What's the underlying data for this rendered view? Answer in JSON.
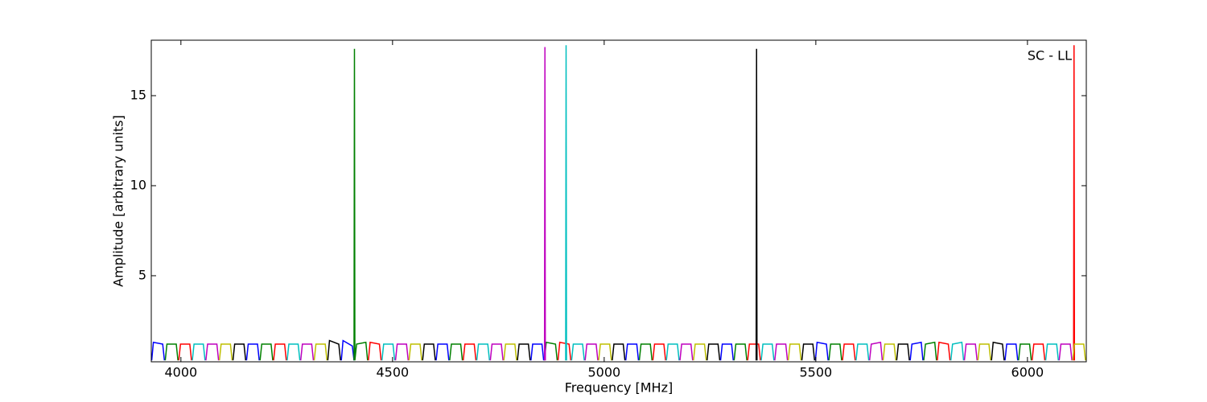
{
  "chart_data": {
    "type": "line",
    "xlabel": "Frequency [MHz]",
    "ylabel": "Amplitude [arbitrary units]",
    "annotation": "SC - LL",
    "xlim": [
      3930,
      6139
    ],
    "ylim": [
      0.22,
      18.08
    ],
    "xticks": [
      4000,
      4500,
      5000,
      5500,
      6000
    ],
    "yticks": [
      5,
      10,
      15
    ],
    "series": [
      {
        "color": "#0000ff",
        "x": [
          3931,
          3935,
          3957,
          3961,
          3962,
          4155,
          4159,
          4181,
          4185,
          4186,
          4379,
          4383,
          4405,
          4409,
          4410,
          4603,
          4607,
          4629,
          4633,
          4634,
          4827,
          4831,
          4853,
          4857,
          4858,
          5051,
          5055,
          5077,
          5081,
          5082,
          5275,
          5279,
          5301,
          5305,
          5306,
          5499,
          5503,
          5525,
          5529,
          5530,
          5723,
          5727,
          5749,
          5753,
          5754,
          5947,
          5951,
          5973,
          5977,
          5978
        ],
        "values": [
          0.3,
          1.3,
          1.2,
          0.3,
          null,
          0.3,
          1.2,
          1.2,
          0.3,
          null,
          0.3,
          1.4,
          1.1,
          0.3,
          null,
          0.3,
          1.2,
          1.2,
          0.3,
          null,
          0.3,
          1.2,
          1.2,
          0.3,
          null,
          0.3,
          1.2,
          1.2,
          0.3,
          null,
          0.3,
          1.2,
          1.2,
          0.3,
          null,
          0.3,
          1.3,
          1.2,
          0.3,
          null,
          0.3,
          1.2,
          1.3,
          0.3,
          null,
          0.3,
          1.2,
          1.2,
          0.3,
          null
        ]
      },
      {
        "color": "#008000",
        "x": [
          3963,
          3967,
          3989,
          3993,
          3994,
          4187,
          4191,
          4213,
          4217,
          4218,
          4411,
          4415,
          4437,
          4441,
          4442,
          4635,
          4639,
          4661,
          4665,
          4666,
          4859,
          4863,
          4885,
          4889,
          4890,
          5083,
          5087,
          5109,
          5113,
          5114,
          5307,
          5311,
          5333,
          5337,
          5338,
          5531,
          5535,
          5557,
          5561,
          5562,
          5755,
          5759,
          5781,
          5785,
          5786,
          5979,
          5983,
          6005,
          6009,
          6010,
          4409,
          4410,
          4411,
          4412
        ],
        "values": [
          0.3,
          1.2,
          1.2,
          0.3,
          null,
          0.3,
          1.2,
          1.2,
          0.3,
          null,
          0.3,
          1.2,
          1.3,
          0.3,
          null,
          0.3,
          1.2,
          1.2,
          0.3,
          null,
          0.3,
          1.3,
          1.2,
          0.3,
          null,
          0.3,
          1.2,
          1.2,
          0.3,
          null,
          0.3,
          1.2,
          1.2,
          0.3,
          null,
          0.3,
          1.2,
          1.2,
          0.3,
          null,
          0.3,
          1.2,
          1.3,
          0.3,
          null,
          0.3,
          1.2,
          1.2,
          0.3,
          null,
          0.3,
          17.6,
          0.3,
          null
        ]
      },
      {
        "color": "#ff0000",
        "x": [
          3995,
          3999,
          4021,
          4025,
          4026,
          4219,
          4223,
          4245,
          4249,
          4250,
          4443,
          4447,
          4469,
          4473,
          4474,
          4667,
          4671,
          4693,
          4697,
          4698,
          4891,
          4895,
          4917,
          4921,
          4922,
          5115,
          5119,
          5141,
          5145,
          5146,
          5339,
          5343,
          5365,
          5369,
          5370,
          5563,
          5567,
          5589,
          5593,
          5594,
          5787,
          5791,
          5813,
          5817,
          5818,
          6011,
          6015,
          6037,
          6041,
          6042,
          6109,
          6110,
          6111,
          6112
        ],
        "values": [
          0.3,
          1.2,
          1.2,
          0.3,
          null,
          0.3,
          1.2,
          1.2,
          0.3,
          null,
          0.3,
          1.3,
          1.2,
          0.3,
          null,
          0.3,
          1.2,
          1.2,
          0.3,
          null,
          0.3,
          1.3,
          1.2,
          0.3,
          null,
          0.3,
          1.2,
          1.2,
          0.3,
          null,
          0.3,
          1.2,
          1.2,
          0.3,
          null,
          0.3,
          1.2,
          1.2,
          0.3,
          null,
          0.3,
          1.3,
          1.2,
          0.3,
          null,
          0.3,
          1.2,
          1.2,
          0.3,
          null,
          0.3,
          17.8,
          0.3,
          null
        ]
      },
      {
        "color": "#00bfbf",
        "x": [
          4027,
          4031,
          4053,
          4057,
          4058,
          4251,
          4255,
          4277,
          4281,
          4282,
          4475,
          4479,
          4501,
          4505,
          4506,
          4699,
          4703,
          4725,
          4729,
          4730,
          4923,
          4927,
          4949,
          4953,
          4954,
          5147,
          5151,
          5173,
          5177,
          5178,
          5371,
          5375,
          5397,
          5401,
          5402,
          5595,
          5599,
          5621,
          5625,
          5626,
          5819,
          5823,
          5845,
          5849,
          5850,
          6043,
          6047,
          6069,
          6073,
          6074,
          4909,
          4910,
          4911,
          4912
        ],
        "values": [
          0.3,
          1.2,
          1.2,
          0.3,
          null,
          0.3,
          1.2,
          1.2,
          0.3,
          null,
          0.3,
          1.2,
          1.2,
          0.3,
          null,
          0.3,
          1.2,
          1.2,
          0.3,
          null,
          0.3,
          1.2,
          1.2,
          0.3,
          null,
          0.3,
          1.2,
          1.2,
          0.3,
          null,
          0.3,
          1.2,
          1.2,
          0.3,
          null,
          0.3,
          1.2,
          1.2,
          0.3,
          null,
          0.3,
          1.2,
          1.3,
          0.3,
          null,
          0.3,
          1.2,
          1.2,
          0.3,
          null,
          0.3,
          17.8,
          0.3,
          null
        ]
      },
      {
        "color": "#bf00bf",
        "x": [
          4059,
          4063,
          4085,
          4089,
          4090,
          4283,
          4287,
          4309,
          4313,
          4314,
          4507,
          4511,
          4533,
          4537,
          4538,
          4731,
          4735,
          4757,
          4761,
          4762,
          4955,
          4959,
          4981,
          4985,
          4986,
          5179,
          5183,
          5205,
          5209,
          5210,
          5403,
          5407,
          5429,
          5433,
          5434,
          5627,
          5631,
          5653,
          5657,
          5658,
          5851,
          5855,
          5877,
          5881,
          5882,
          6075,
          6079,
          6101,
          6105,
          6106,
          4859,
          4860,
          4861,
          4862
        ],
        "values": [
          0.3,
          1.2,
          1.2,
          0.3,
          null,
          0.3,
          1.2,
          1.2,
          0.3,
          null,
          0.3,
          1.2,
          1.2,
          0.3,
          null,
          0.3,
          1.2,
          1.2,
          0.3,
          null,
          0.3,
          1.2,
          1.2,
          0.3,
          null,
          0.3,
          1.2,
          1.2,
          0.3,
          null,
          0.3,
          1.2,
          1.2,
          0.3,
          null,
          0.3,
          1.2,
          1.3,
          0.3,
          null,
          0.3,
          1.2,
          1.2,
          0.3,
          null,
          0.3,
          1.2,
          1.2,
          0.3,
          null,
          0.3,
          17.7,
          0.3,
          null
        ]
      },
      {
        "color": "#bfbf00",
        "x": [
          4091,
          4095,
          4117,
          4121,
          4122,
          4315,
          4319,
          4341,
          4345,
          4346,
          4539,
          4543,
          4565,
          4569,
          4570,
          4763,
          4767,
          4789,
          4793,
          4794,
          4987,
          4991,
          5013,
          5017,
          5018,
          5211,
          5215,
          5237,
          5241,
          5242,
          5435,
          5439,
          5461,
          5465,
          5466,
          5659,
          5663,
          5685,
          5689,
          5690,
          5883,
          5887,
          5909,
          5913,
          5914,
          6107,
          6111,
          6133,
          6137,
          6138
        ],
        "values": [
          0.3,
          1.2,
          1.2,
          0.3,
          null,
          0.3,
          1.2,
          1.2,
          0.3,
          null,
          0.3,
          1.2,
          1.2,
          0.3,
          null,
          0.3,
          1.2,
          1.2,
          0.3,
          null,
          0.3,
          1.2,
          1.2,
          0.3,
          null,
          0.3,
          1.2,
          1.2,
          0.3,
          null,
          0.3,
          1.2,
          1.2,
          0.3,
          null,
          0.3,
          1.2,
          1.2,
          0.3,
          null,
          0.3,
          1.2,
          1.2,
          0.3,
          null,
          0.3,
          1.2,
          1.2,
          0.3,
          null
        ]
      },
      {
        "color": "#000000",
        "x": [
          4123,
          4127,
          4149,
          4153,
          4154,
          4347,
          4351,
          4373,
          4377,
          4378,
          4571,
          4575,
          4597,
          4601,
          4602,
          4795,
          4799,
          4821,
          4825,
          4826,
          5019,
          5023,
          5045,
          5049,
          5050,
          5243,
          5247,
          5269,
          5273,
          5274,
          5467,
          5471,
          5493,
          5497,
          5498,
          5691,
          5695,
          5717,
          5721,
          5722,
          5915,
          5919,
          5941,
          5945,
          5946,
          5359,
          5360,
          5361,
          5362
        ],
        "values": [
          0.3,
          1.2,
          1.2,
          0.3,
          null,
          0.3,
          1.4,
          1.2,
          0.3,
          null,
          0.3,
          1.2,
          1.2,
          0.3,
          null,
          0.3,
          1.2,
          1.2,
          0.3,
          null,
          0.3,
          1.2,
          1.2,
          0.3,
          null,
          0.3,
          1.2,
          1.2,
          0.3,
          null,
          0.3,
          1.2,
          1.2,
          0.3,
          null,
          0.3,
          1.2,
          1.2,
          0.3,
          null,
          0.3,
          1.3,
          1.2,
          0.3,
          null,
          0.3,
          17.6,
          0.3,
          null
        ]
      }
    ]
  }
}
